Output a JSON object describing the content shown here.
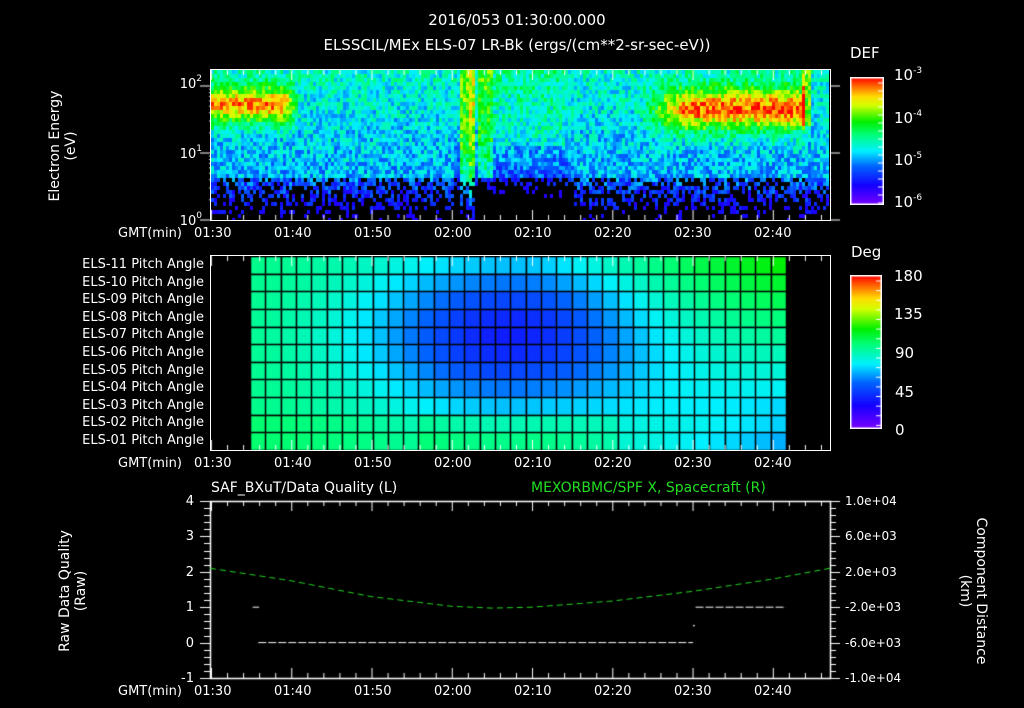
{
  "header": {
    "line1": "2016/053 01:30:00.000",
    "line2": "ELSSCIL/MEx ELS-07 LR-Bk  (ergs/(cm**2-sr-sec-eV))"
  },
  "colors": {
    "background": "#000000",
    "axis": "#ffffff",
    "spacecraft_line": "#22dd22",
    "quality_line": "#ffffff"
  },
  "time_axis": {
    "label": "GMT(min)",
    "ticks": [
      "01:30",
      "01:40",
      "01:50",
      "02:00",
      "02:10",
      "02:20",
      "02:30",
      "02:40"
    ]
  },
  "panel_spectrogram": {
    "ylabel_line1": "Electron Energy",
    "ylabel_line2": "(eV)",
    "yticks": [
      {
        "base": "10",
        "exp": "2"
      },
      {
        "base": "10",
        "exp": "1"
      },
      {
        "base": "10",
        "exp": "0"
      }
    ],
    "colorbar": {
      "title": "DEF",
      "labels": [
        {
          "base": "10",
          "exp": "-3"
        },
        {
          "base": "10",
          "exp": "-4"
        },
        {
          "base": "10",
          "exp": "-5"
        },
        {
          "base": "10",
          "exp": "-6"
        }
      ]
    }
  },
  "panel_pitch": {
    "rows": [
      "ELS-11 Pitch Angle",
      "ELS-10 Pitch Angle",
      "ELS-09 Pitch Angle",
      "ELS-08 Pitch Angle",
      "ELS-07 Pitch Angle",
      "ELS-06 Pitch Angle",
      "ELS-05 Pitch Angle",
      "ELS-04 Pitch Angle",
      "ELS-03 Pitch Angle",
      "ELS-02 Pitch Angle",
      "ELS-01 Pitch Angle"
    ],
    "colorbar": {
      "title": "Deg",
      "labels": [
        "180",
        "135",
        "90",
        "45",
        "0"
      ]
    }
  },
  "panel_quality": {
    "left_title": "SAF_BXuT/Data Quality (L)",
    "right_title": "MEXORBMC/SPF X, Spacecraft (R)",
    "ylabel_left_line1": "Raw Data Quality",
    "ylabel_left_line2": "(Raw)",
    "ylabel_right_line1": "Component Distance",
    "ylabel_right_line2": "(km)",
    "left_yticks": [
      "4",
      "3",
      "2",
      "1",
      "0",
      "-1"
    ],
    "right_yticks": [
      "1.0e+04",
      "6.0e+03",
      "2.0e+03",
      "-2.0e+03",
      "-6.0e+03",
      "-1.0e+04"
    ]
  },
  "chart_data": [
    {
      "type": "heatmap",
      "title": "ELSSCIL/MEx ELS-07 LR-Bk (ergs/(cm**2-sr-sec-eV))",
      "xlabel": "GMT(min)",
      "ylabel": "Electron Energy (eV)",
      "x_ticks": [
        "01:30",
        "01:40",
        "01:50",
        "02:00",
        "02:10",
        "02:20",
        "02:30",
        "02:40"
      ],
      "y_scale": "log",
      "ylim": [
        1,
        150
      ],
      "colorbar": {
        "label": "DEF",
        "scale": "log",
        "range": [
          1e-06,
          0.001
        ]
      },
      "features": [
        {
          "time_range": [
            "01:30",
            "01:41"
          ],
          "energy_eV": [
            15,
            80
          ],
          "level": "~1e-4 to 3e-4 (yellow/orange)"
        },
        {
          "time_range": [
            "02:01",
            "02:03"
          ],
          "energy_eV": [
            2,
            150
          ],
          "level": "~5e-5 narrow vertical bands"
        },
        {
          "time_range": [
            "02:24",
            "02:43"
          ],
          "energy_eV": [
            15,
            100
          ],
          "level": "~3e-4 to 6e-4 (orange), peak near 02:43"
        }
      ]
    },
    {
      "type": "heatmap",
      "title": "Pitch Angle",
      "xlabel": "GMT(min)",
      "categories": [
        "ELS-11",
        "ELS-10",
        "ELS-09",
        "ELS-08",
        "ELS-07",
        "ELS-06",
        "ELS-05",
        "ELS-04",
        "ELS-03",
        "ELS-02",
        "ELS-01"
      ],
      "x_range": [
        "01:35",
        "02:41"
      ],
      "colorbar": {
        "label": "Deg",
        "range": [
          0,
          180
        ],
        "ticks": [
          0,
          45,
          90,
          135,
          180
        ]
      },
      "approx_values": {
        "start_01_35": "≈95-100 deg all anodes",
        "center_02_05_ELS-07": "≈35 deg (minimum)",
        "end_02_40_ELS-01": "≈55 deg",
        "end_02_40_ELS-08": "≈115 deg"
      }
    },
    {
      "type": "line",
      "title": "SAF_BXuT/Data Quality (L) ; MEXORBMC/SPF X, Spacecraft (R)",
      "xlabel": "GMT(min)",
      "x_ticks": [
        "01:30",
        "01:40",
        "01:50",
        "02:00",
        "02:10",
        "02:20",
        "02:30",
        "02:40"
      ],
      "ylim_left": [
        -1,
        4
      ],
      "ylim_right": [
        -10000,
        10000
      ],
      "series": [
        {
          "name": "Data Quality (L)",
          "axis": "left",
          "style": "white segments",
          "points": [
            [
              "01:35",
              1
            ],
            [
              "01:36",
              0
            ],
            [
              "02:30",
              0
            ],
            [
              "02:30",
              0.5
            ],
            [
              "02:30",
              1
            ],
            [
              "02:42",
              1
            ]
          ]
        },
        {
          "name": "MEXORBMC/SPF X (R)",
          "axis": "right",
          "style": "green dashed",
          "points": [
            [
              "01:30",
              2400
            ],
            [
              "01:40",
              1000
            ],
            [
              "01:50",
              -800
            ],
            [
              "02:00",
              -1900
            ],
            [
              "02:05",
              -2100
            ],
            [
              "02:10",
              -2000
            ],
            [
              "02:20",
              -1300
            ],
            [
              "02:30",
              -200
            ],
            [
              "02:40",
              1200
            ],
            [
              "02:47",
              2400
            ]
          ]
        }
      ]
    }
  ]
}
